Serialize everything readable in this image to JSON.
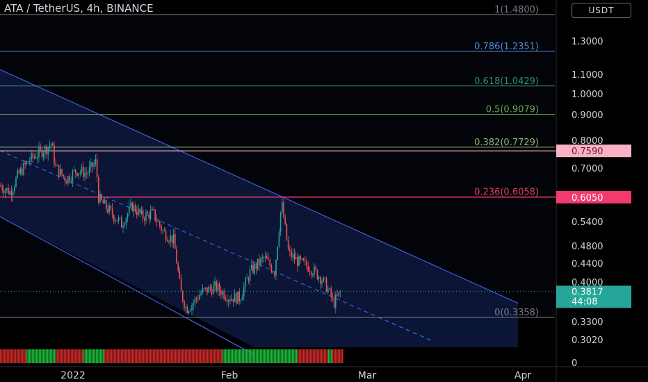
{
  "header": {
    "title": "ATA / TetherUS, 4h, BINANCE",
    "currency": "USDT"
  },
  "chart_data": {
    "type": "candlestick",
    "symbol": "ATA / TetherUS",
    "interval": "4h",
    "exchange": "BINANCE",
    "y_scale": "log",
    "y_ticks": [
      "1.3000",
      "1.1000",
      "1.0000",
      "0.9000",
      "0.8000",
      "0.7000",
      "0.5400",
      "0.4800",
      "0.4400",
      "0.4000",
      "0.3300",
      "0.3020",
      "0"
    ],
    "x_ticks": [
      "2022",
      "Feb",
      "Mar",
      "Apr"
    ],
    "fib_levels": [
      {
        "label": "1(1.4800)",
        "ratio": 1,
        "price": 1.48,
        "color": "#787b86"
      },
      {
        "label": "0.786(1.2351)",
        "ratio": 0.786,
        "price": 1.2351,
        "color": "#4f8ad8"
      },
      {
        "label": "0.618(1.0429)",
        "ratio": 0.618,
        "price": 1.0429,
        "color": "#2e8f74"
      },
      {
        "label": "0.5(0.9079)",
        "ratio": 0.5,
        "price": 0.9079,
        "color": "#6aa84f"
      },
      {
        "label": "0.382(0.7729)",
        "ratio": 0.382,
        "price": 0.7729,
        "color": "#8fb573"
      },
      {
        "label": "0.236(0.6058)",
        "ratio": 0.236,
        "price": 0.6058,
        "color": "#e0405a"
      },
      {
        "label": "0(0.3358)",
        "ratio": 0,
        "price": 0.3358,
        "color": "#787b86"
      }
    ],
    "horizontal_lines": [
      {
        "price_label": "0.7590",
        "price": 0.759,
        "color": "#f7b2c6"
      },
      {
        "price_label": "0.6050",
        "price": 0.605,
        "color": "#f23a6e"
      }
    ],
    "current_price": {
      "value": "0.3817",
      "countdown": "44:08",
      "color": "#26a69a"
    },
    "price_path": [
      [
        0,
        0.64
      ],
      [
        15,
        0.62
      ],
      [
        25,
        0.67
      ],
      [
        40,
        0.72
      ],
      [
        55,
        0.75
      ],
      [
        68,
        0.77
      ],
      [
        74,
        0.79
      ],
      [
        80,
        0.7
      ],
      [
        95,
        0.66
      ],
      [
        110,
        0.69
      ],
      [
        125,
        0.68
      ],
      [
        138,
        0.72
      ],
      [
        142,
        0.6
      ],
      [
        160,
        0.56
      ],
      [
        175,
        0.53
      ],
      [
        190,
        0.58
      ],
      [
        205,
        0.55
      ],
      [
        220,
        0.56
      ],
      [
        235,
        0.51
      ],
      [
        250,
        0.49
      ],
      [
        260,
        0.38
      ],
      [
        268,
        0.35
      ],
      [
        277,
        0.36
      ],
      [
        290,
        0.38
      ],
      [
        310,
        0.39
      ],
      [
        330,
        0.37
      ],
      [
        345,
        0.37
      ],
      [
        360,
        0.42
      ],
      [
        380,
        0.45
      ],
      [
        395,
        0.42
      ],
      [
        405,
        0.59
      ],
      [
        415,
        0.46
      ],
      [
        430,
        0.44
      ],
      [
        445,
        0.43
      ],
      [
        460,
        0.41
      ],
      [
        470,
        0.39
      ],
      [
        480,
        0.36
      ],
      [
        490,
        0.38
      ]
    ],
    "channel": {
      "upper": [
        [
          0,
          1.13
        ],
        [
          745,
          0.36
        ]
      ],
      "lower": [
        [
          0,
          0.55
        ],
        [
          365,
          0.28
        ]
      ],
      "mid": [
        [
          0,
          0.76
        ],
        [
          620,
          0.3
        ]
      ]
    }
  }
}
